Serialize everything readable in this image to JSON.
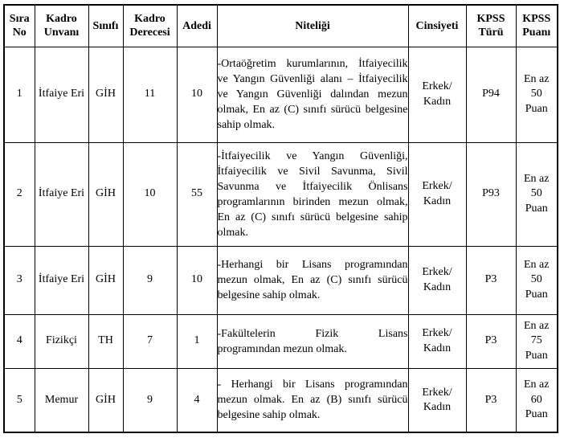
{
  "table": {
    "headers": [
      "Sıra No",
      "Kadro Unvanı",
      "Sınıfı",
      "Kadro Derecesi",
      "Adedi",
      "Niteliği",
      "Cinsiyeti",
      "KPSS Türü",
      "KPSS Puanı"
    ],
    "rows": [
      {
        "sira_no": "1",
        "kadro_unvani": "İtfaiye Eri",
        "sinifi": "GİH",
        "kadro_derecesi": "11",
        "adedi": "10",
        "niteligi_lines": [
          "-Ortaöğretim kurumlarının, İtfaiyecilik",
          "ve Yangın Güvenliği alanı – İtfaiyecilik",
          "ve Yangın Güvenliği dalından mezun",
          "olmak, En az (C) sınıfı sürücü belgesine",
          "sahip olmak."
        ],
        "cinsiyeti": "Erkek/\nKadın",
        "kpss_turu": "P94",
        "kpss_puani": "En az\n50\nPuan"
      },
      {
        "sira_no": "2",
        "kadro_unvani": "İtfaiye Eri",
        "sinifi": "GİH",
        "kadro_derecesi": "10",
        "adedi": "55",
        "niteligi_lines": [
          "-İtfaiyecilik ve Yangın Güvenliği,",
          "İtfaiyecilik ve Sivil Savunma, Sivil",
          "Savunma ve İtfaiyecilik Önlisans",
          "programlarının birinden mezun olmak,",
          "En az (C) sınıfı sürücü belgesine sahip",
          "olmak."
        ],
        "cinsiyeti": "Erkek/\nKadın",
        "kpss_turu": "P93",
        "kpss_puani": "En az\n50\nPuan"
      },
      {
        "sira_no": "3",
        "kadro_unvani": "İtfaiye Eri",
        "sinifi": "GİH",
        "kadro_derecesi": "9",
        "adedi": "10",
        "niteligi_lines": [
          "-Herhangi bir Lisans programından",
          "mezun olmak, En az (C) sınıfı sürücü",
          "belgesine sahip olmak."
        ],
        "cinsiyeti": "Erkek/\nKadın",
        "kpss_turu": "P3",
        "kpss_puani": "En az\n50\nPuan"
      },
      {
        "sira_no": "4",
        "kadro_unvani": "Fizikçi",
        "sinifi": "TH",
        "kadro_derecesi": "7",
        "adedi": "1",
        "niteligi_lines": [
          "-Fakültelerin Fizik Lisans",
          "programından mezun olmak."
        ],
        "cinsiyeti": "Erkek/\nKadın",
        "kpss_turu": "P3",
        "kpss_puani": "En az\n75\nPuan"
      },
      {
        "sira_no": "5",
        "kadro_unvani": "Memur",
        "sinifi": "GİH",
        "kadro_derecesi": "9",
        "adedi": "4",
        "niteligi_lines": [
          "- Herhangi bir Lisans programından",
          "mezun olmak. En az (B) sınıfı sürücü",
          "belgesine sahip olmak."
        ],
        "cinsiyeti": "Erkek/\nKadın",
        "kpss_turu": "P3",
        "kpss_puani": "En az\n60\nPuan"
      }
    ]
  }
}
